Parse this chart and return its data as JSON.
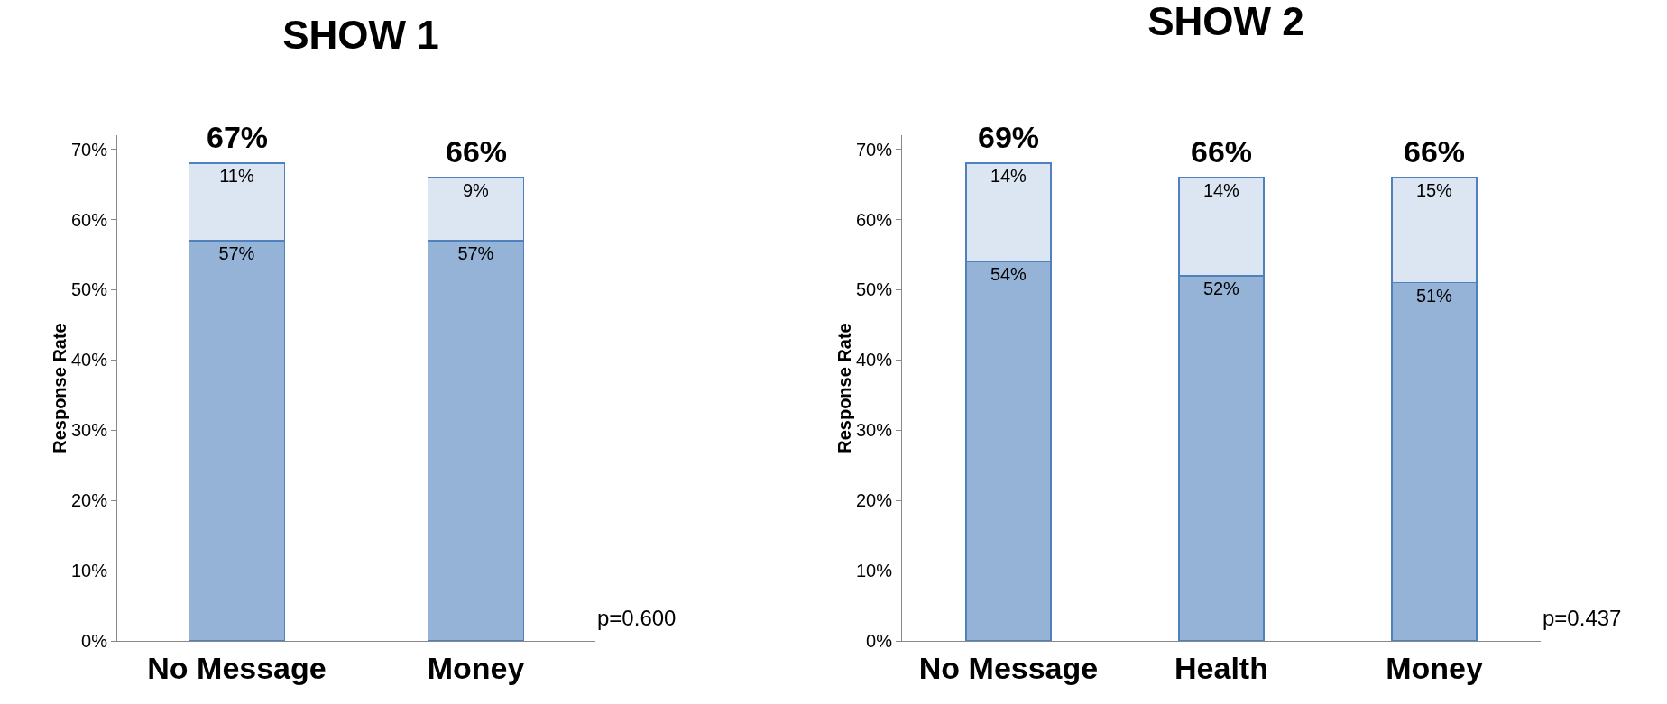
{
  "chart_data": [
    {
      "type": "bar",
      "title": "SHOW 1",
      "ylabel": "Response Rate",
      "categories": [
        "No Message",
        "Money"
      ],
      "stacked": true,
      "grid": false,
      "series": [
        {
          "color": "#95b3d7",
          "values": [
            57,
            57
          ],
          "value_labels": [
            "57%",
            "57%"
          ]
        },
        {
          "color": "#dce6f2",
          "values": [
            11,
            9
          ],
          "value_labels": [
            "11%",
            "9%"
          ]
        }
      ],
      "totals": [
        "67%",
        "66%"
      ],
      "ylim": [
        0,
        72
      ],
      "yticks": [
        {
          "value": 0,
          "label": "0%"
        },
        {
          "value": 10,
          "label": "10%"
        },
        {
          "value": 20,
          "label": "20%"
        },
        {
          "value": 30,
          "label": "30%"
        },
        {
          "value": 40,
          "label": "40%"
        },
        {
          "value": 50,
          "label": "50%"
        },
        {
          "value": 60,
          "label": "60%"
        },
        {
          "value": 70,
          "label": "70%"
        }
      ],
      "annotations": [
        "p=0.600"
      ]
    },
    {
      "type": "bar",
      "title": "SHOW 2",
      "ylabel": "Response Rate",
      "categories": [
        "No Message",
        "Health",
        "Money"
      ],
      "stacked": true,
      "grid": false,
      "series": [
        {
          "color": "#95b3d7",
          "values": [
            54,
            52,
            51
          ],
          "value_labels": [
            "54%",
            "52%",
            "51%"
          ]
        },
        {
          "color": "#dce6f2",
          "values": [
            14,
            14,
            15
          ],
          "value_labels": [
            "14%",
            "14%",
            "15%"
          ]
        }
      ],
      "totals": [
        "69%",
        "66%",
        "66%"
      ],
      "ylim": [
        0,
        72
      ],
      "yticks": [
        {
          "value": 0,
          "label": "0%"
        },
        {
          "value": 10,
          "label": "10%"
        },
        {
          "value": 20,
          "label": "20%"
        },
        {
          "value": 30,
          "label": "30%"
        },
        {
          "value": 40,
          "label": "40%"
        },
        {
          "value": 50,
          "label": "50%"
        },
        {
          "value": 60,
          "label": "60%"
        },
        {
          "value": 70,
          "label": "70%"
        }
      ],
      "annotations": [
        "p=0.437"
      ]
    }
  ]
}
